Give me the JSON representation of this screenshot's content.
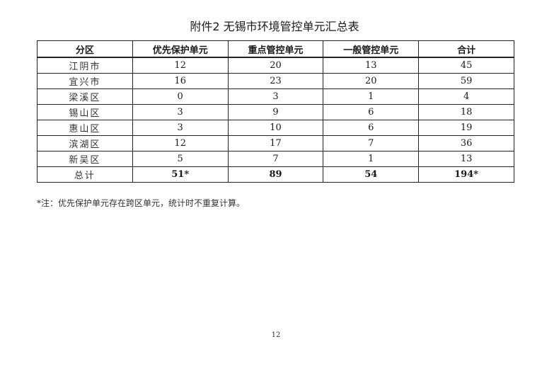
{
  "title": "附件2  无锡市环境管控单元汇总表",
  "table": {
    "headers": [
      "分区",
      "优先保护单元",
      "重点管控单元",
      "一般管控单元",
      "合计"
    ],
    "rows": [
      [
        "江阴市",
        "12",
        "20",
        "13",
        "45"
      ],
      [
        "宜兴市",
        "16",
        "23",
        "20",
        "59"
      ],
      [
        "梁溪区",
        "0",
        "3",
        "1",
        "4"
      ],
      [
        "锡山区",
        "3",
        "9",
        "6",
        "18"
      ],
      [
        "惠山区",
        "3",
        "10",
        "6",
        "19"
      ],
      [
        "滨湖区",
        "12",
        "17",
        "7",
        "36"
      ],
      [
        "新吴区",
        "5",
        "7",
        "1",
        "13"
      ]
    ],
    "total": [
      "总计",
      "51*",
      "89",
      "54",
      "194*"
    ]
  },
  "note": "*注：优先保护单元存在跨区单元，统计时不重复计算。",
  "page_number": "12"
}
